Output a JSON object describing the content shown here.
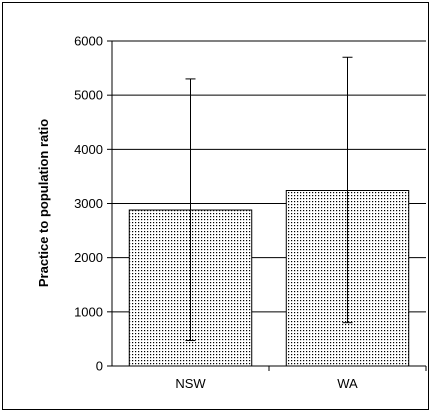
{
  "chart_data": {
    "type": "bar",
    "title": "",
    "xlabel": "",
    "ylabel": "Practice to population ratio",
    "categories": [
      "NSW",
      "WA"
    ],
    "values": [
      2880,
      3240
    ],
    "error_bars": [
      {
        "low": 470,
        "high": 5300
      },
      {
        "low": 800,
        "high": 5700
      }
    ],
    "ylim": [
      0,
      6000
    ],
    "y_ticks": [
      0,
      1000,
      2000,
      3000,
      4000,
      5000,
      6000
    ],
    "grid": "horizontal",
    "bar_fill": "dotted pattern",
    "colors": {
      "bar_dots": "#000000",
      "bar_background": "#ffffff",
      "grid": "#000000"
    }
  }
}
